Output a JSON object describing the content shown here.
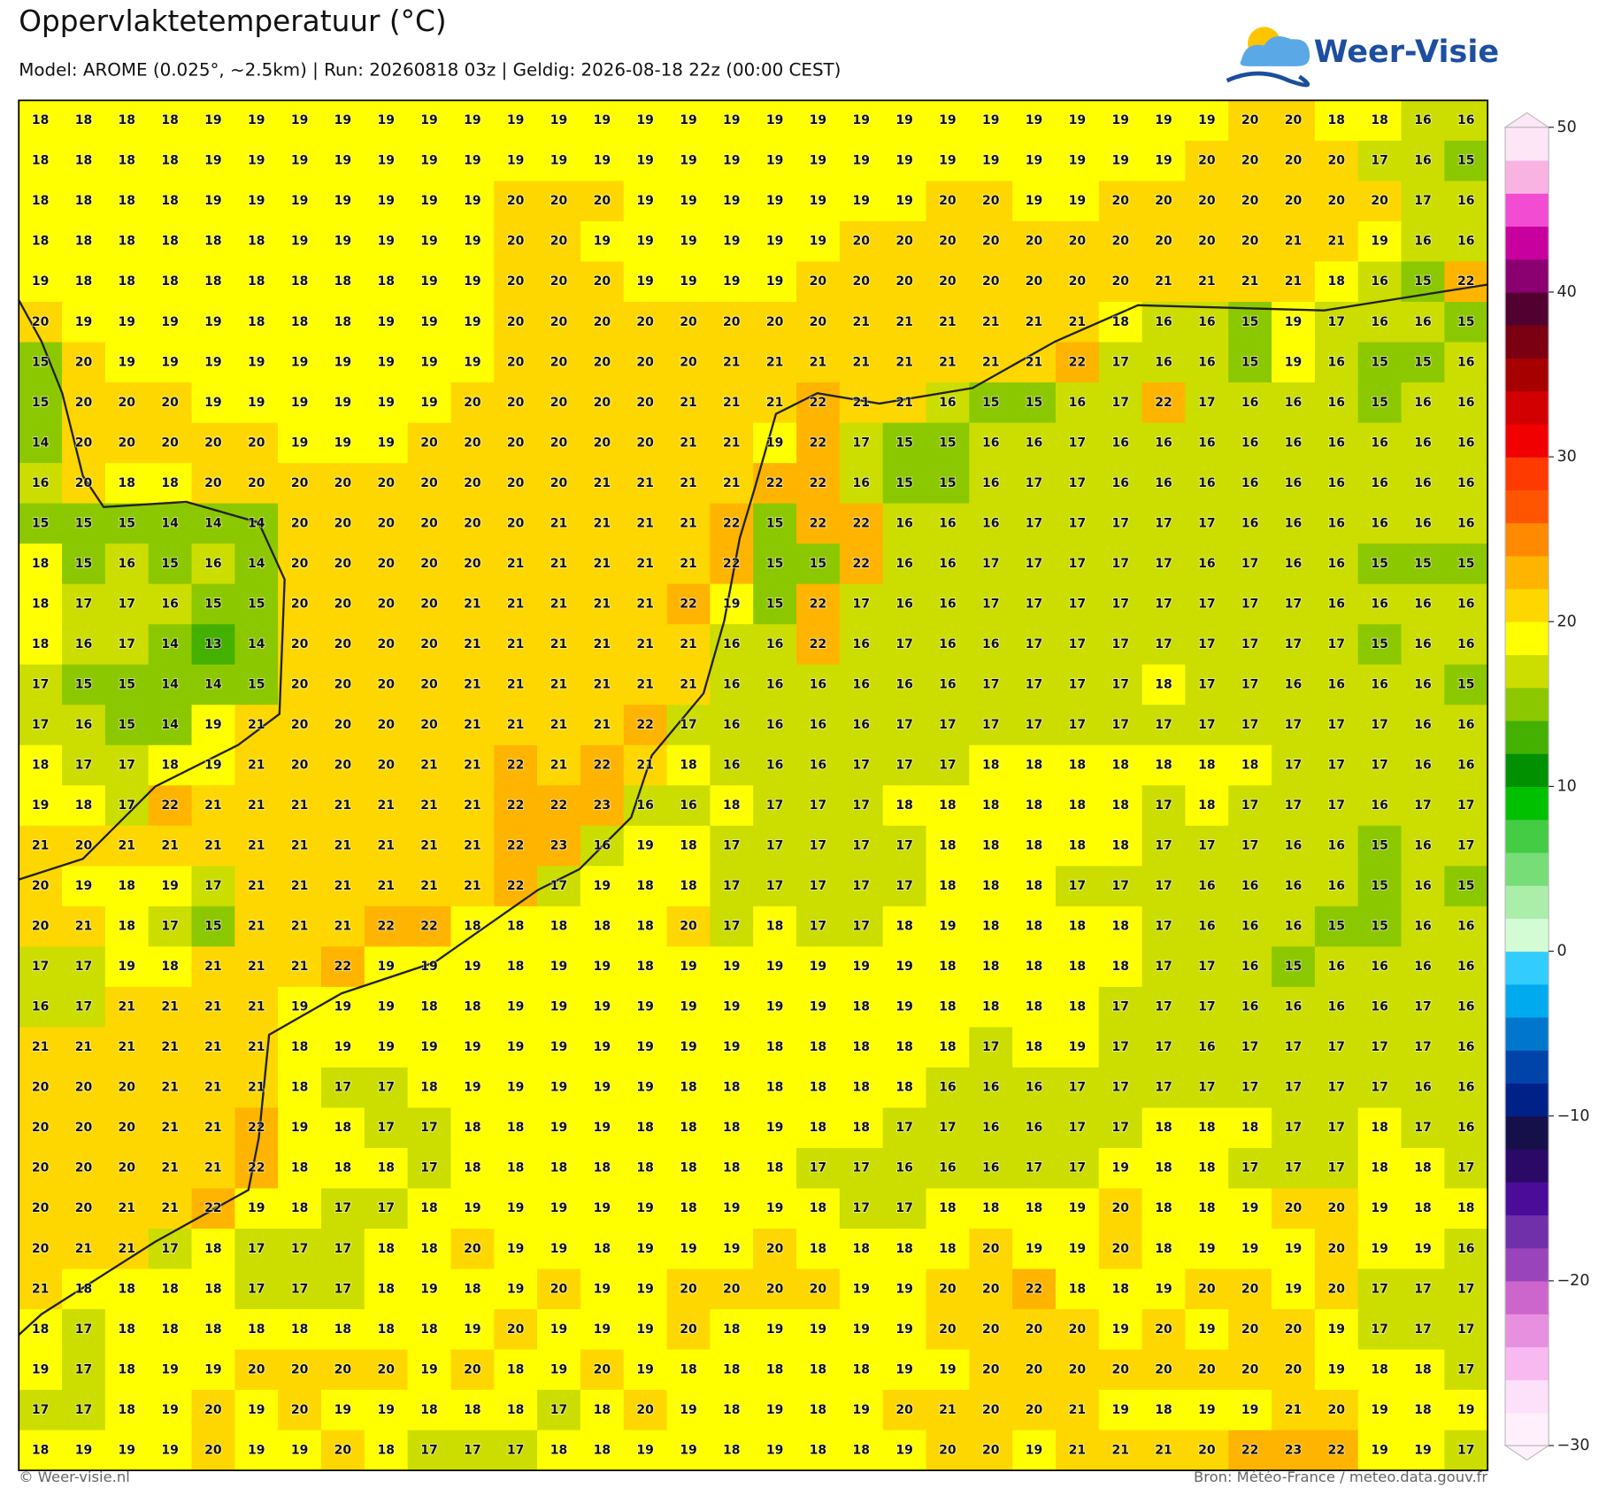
{
  "header": {
    "title": "Oppervlaktetemperatuur (°C)",
    "subtitle": "Model: AROME (0.025°, ~2.5km)  |  Run: 20260818 03z  |  Geldig: 2026-08-18 22z (00:00 CEST)",
    "logo": "Weer-Visie"
  },
  "colorbar": {
    "clim": [
      -30,
      50
    ],
    "colors": [
      "#fff0fc",
      "#fde0fa",
      "#f8b8f0",
      "#e890e0",
      "#cc66cc",
      "#9944bb",
      "#7030aa",
      "#4a0c99",
      "#2a0a66",
      "#15104a",
      "#002288",
      "#0044aa",
      "#0077cc",
      "#00aaee",
      "#33ccff",
      "#d4fcd4",
      "#aaeeaa",
      "#77dd77",
      "#44cc44",
      "#00c000",
      "#009000",
      "#44b000",
      "#8cc800",
      "#ccdd00",
      "#ffff00",
      "#ffd700",
      "#ffb400",
      "#ff8a00",
      "#ff5500",
      "#ff3a00",
      "#f00000",
      "#d20000",
      "#a60000",
      "#7b0012",
      "#520030",
      "#8b0070",
      "#c8009e",
      "#f24cd2",
      "#f9b3e3",
      "#fde6f5"
    ],
    "ticks": [
      50,
      40,
      30,
      20,
      10,
      0,
      {
        "value": -10,
        "label": "−10"
      },
      {
        "value": -20,
        "label": "−20"
      },
      {
        "value": -30,
        "label": "−30"
      }
    ]
  },
  "temperature_grid": {
    "rows": [
      [
        18,
        18,
        18,
        18,
        19,
        19,
        19,
        19,
        19,
        19,
        19,
        19,
        19,
        19,
        19,
        19,
        19,
        19,
        19,
        19,
        19,
        19,
        19,
        19,
        19,
        19,
        19,
        19,
        20,
        20,
        18,
        18,
        16,
        16
      ],
      [
        18,
        18,
        18,
        18,
        19,
        19,
        19,
        19,
        19,
        19,
        19,
        19,
        19,
        19,
        19,
        19,
        19,
        19,
        19,
        19,
        19,
        19,
        19,
        19,
        19,
        19,
        19,
        20,
        20,
        20,
        20,
        17,
        16,
        15
      ],
      [
        18,
        18,
        18,
        18,
        19,
        19,
        19,
        19,
        19,
        19,
        19,
        20,
        20,
        20,
        19,
        19,
        19,
        19,
        19,
        19,
        19,
        20,
        20,
        19,
        19,
        20,
        20,
        20,
        20,
        20,
        20,
        20,
        17,
        16
      ],
      [
        18,
        18,
        18,
        18,
        18,
        18,
        19,
        19,
        19,
        19,
        19,
        20,
        20,
        19,
        19,
        19,
        19,
        19,
        19,
        20,
        20,
        20,
        20,
        20,
        20,
        20,
        20,
        20,
        20,
        21,
        21,
        19,
        16,
        16
      ],
      [
        19,
        18,
        18,
        18,
        18,
        18,
        18,
        18,
        18,
        19,
        19,
        20,
        20,
        20,
        19,
        19,
        19,
        19,
        20,
        20,
        20,
        20,
        20,
        20,
        20,
        20,
        21,
        21,
        21,
        21,
        18,
        16,
        15,
        22
      ],
      [
        20,
        19,
        19,
        19,
        19,
        18,
        18,
        18,
        19,
        19,
        19,
        20,
        20,
        20,
        20,
        20,
        20,
        20,
        20,
        21,
        21,
        21,
        21,
        21,
        21,
        18,
        16,
        16,
        15,
        19,
        17,
        16,
        16,
        15
      ],
      [
        15,
        20,
        19,
        19,
        19,
        19,
        19,
        19,
        19,
        19,
        19,
        20,
        20,
        20,
        20,
        20,
        21,
        21,
        21,
        21,
        21,
        21,
        21,
        21,
        22,
        17,
        16,
        16,
        15,
        19,
        16,
        15,
        15,
        16
      ],
      [
        15,
        20,
        20,
        20,
        19,
        19,
        19,
        19,
        19,
        19,
        20,
        20,
        20,
        20,
        20,
        21,
        21,
        21,
        22,
        21,
        21,
        16,
        15,
        15,
        16,
        17,
        22,
        17,
        16,
        16,
        16,
        15,
        16,
        16
      ],
      [
        14,
        20,
        20,
        20,
        20,
        20,
        19,
        19,
        19,
        20,
        20,
        20,
        20,
        20,
        20,
        21,
        21,
        19,
        22,
        17,
        15,
        15,
        16,
        16,
        17,
        16,
        16,
        16,
        16,
        16,
        16,
        16,
        16,
        16
      ],
      [
        16,
        20,
        18,
        18,
        20,
        20,
        20,
        20,
        20,
        20,
        20,
        20,
        20,
        21,
        21,
        21,
        21,
        22,
        22,
        16,
        15,
        15,
        16,
        17,
        17,
        16,
        16,
        16,
        16,
        16,
        16,
        16,
        16,
        16
      ],
      [
        15,
        15,
        15,
        14,
        14,
        14,
        20,
        20,
        20,
        20,
        20,
        20,
        21,
        21,
        21,
        21,
        22,
        15,
        22,
        22,
        16,
        16,
        16,
        17,
        17,
        17,
        17,
        17,
        16,
        16,
        16,
        16,
        16,
        16
      ],
      [
        18,
        15,
        16,
        15,
        16,
        14,
        20,
        20,
        20,
        20,
        20,
        21,
        21,
        21,
        21,
        21,
        22,
        15,
        15,
        22,
        16,
        16,
        17,
        17,
        17,
        17,
        17,
        16,
        17,
        16,
        16,
        15,
        15,
        15
      ],
      [
        18,
        17,
        17,
        16,
        15,
        15,
        20,
        20,
        20,
        20,
        21,
        21,
        21,
        21,
        21,
        22,
        19,
        15,
        22,
        17,
        16,
        16,
        17,
        17,
        17,
        17,
        17,
        17,
        17,
        17,
        16,
        16,
        16,
        16
      ],
      [
        18,
        16,
        17,
        14,
        13,
        14,
        20,
        20,
        20,
        20,
        21,
        21,
        21,
        21,
        21,
        21,
        16,
        16,
        22,
        16,
        17,
        16,
        16,
        17,
        17,
        17,
        17,
        17,
        17,
        17,
        17,
        15,
        16,
        16
      ],
      [
        17,
        15,
        15,
        14,
        14,
        15,
        20,
        20,
        20,
        20,
        21,
        21,
        21,
        21,
        21,
        21,
        16,
        16,
        16,
        16,
        16,
        16,
        17,
        17,
        17,
        17,
        18,
        17,
        17,
        16,
        16,
        16,
        16,
        15
      ],
      [
        17,
        16,
        15,
        14,
        19,
        21,
        20,
        20,
        20,
        20,
        21,
        21,
        21,
        21,
        22,
        17,
        16,
        16,
        16,
        16,
        17,
        17,
        17,
        17,
        17,
        17,
        17,
        17,
        17,
        17,
        17,
        17,
        16,
        16
      ],
      [
        18,
        17,
        17,
        18,
        19,
        21,
        20,
        20,
        20,
        21,
        21,
        22,
        21,
        22,
        21,
        18,
        16,
        16,
        16,
        17,
        17,
        17,
        18,
        18,
        18,
        18,
        18,
        18,
        18,
        17,
        17,
        17,
        16,
        16
      ],
      [
        19,
        18,
        17,
        22,
        21,
        21,
        21,
        21,
        21,
        21,
        21,
        22,
        22,
        23,
        16,
        16,
        18,
        17,
        17,
        17,
        18,
        18,
        18,
        18,
        18,
        18,
        17,
        18,
        17,
        17,
        17,
        16,
        17,
        17
      ],
      [
        21,
        20,
        21,
        21,
        21,
        21,
        21,
        21,
        21,
        21,
        21,
        22,
        23,
        16,
        19,
        18,
        17,
        17,
        17,
        17,
        17,
        18,
        18,
        18,
        18,
        18,
        17,
        17,
        17,
        16,
        16,
        15,
        16,
        17
      ],
      [
        20,
        19,
        18,
        19,
        17,
        21,
        21,
        21,
        21,
        21,
        21,
        22,
        17,
        19,
        18,
        18,
        17,
        17,
        17,
        17,
        17,
        18,
        18,
        18,
        17,
        17,
        17,
        16,
        16,
        16,
        16,
        15,
        16,
        15
      ],
      [
        20,
        21,
        18,
        17,
        15,
        21,
        21,
        21,
        22,
        22,
        18,
        18,
        18,
        18,
        18,
        20,
        17,
        18,
        17,
        17,
        18,
        19,
        18,
        18,
        18,
        18,
        17,
        16,
        16,
        16,
        15,
        15,
        16,
        16
      ],
      [
        17,
        17,
        19,
        18,
        21,
        21,
        21,
        22,
        19,
        19,
        19,
        18,
        19,
        19,
        18,
        19,
        19,
        19,
        19,
        19,
        19,
        18,
        18,
        18,
        18,
        18,
        17,
        17,
        16,
        15,
        16,
        16,
        16,
        16
      ],
      [
        16,
        17,
        21,
        21,
        21,
        21,
        19,
        19,
        19,
        18,
        18,
        19,
        19,
        19,
        19,
        19,
        19,
        19,
        19,
        18,
        19,
        18,
        18,
        18,
        18,
        17,
        17,
        17,
        16,
        16,
        16,
        16,
        17,
        16
      ],
      [
        21,
        21,
        21,
        21,
        21,
        21,
        18,
        19,
        19,
        19,
        19,
        19,
        19,
        19,
        19,
        19,
        19,
        18,
        18,
        18,
        18,
        18,
        17,
        18,
        19,
        17,
        17,
        16,
        17,
        17,
        17,
        17,
        17,
        16
      ],
      [
        20,
        20,
        20,
        21,
        21,
        21,
        18,
        17,
        17,
        18,
        19,
        19,
        19,
        19,
        19,
        18,
        18,
        18,
        18,
        18,
        18,
        16,
        16,
        16,
        17,
        17,
        17,
        17,
        17,
        17,
        17,
        17,
        16,
        16
      ],
      [
        20,
        20,
        20,
        21,
        21,
        22,
        19,
        18,
        17,
        17,
        18,
        18,
        19,
        19,
        18,
        18,
        18,
        19,
        18,
        18,
        17,
        17,
        16,
        16,
        17,
        17,
        18,
        18,
        18,
        17,
        17,
        18,
        17,
        16
      ],
      [
        20,
        20,
        20,
        21,
        21,
        22,
        18,
        18,
        18,
        17,
        18,
        18,
        18,
        18,
        18,
        18,
        18,
        18,
        17,
        17,
        16,
        16,
        16,
        17,
        17,
        19,
        18,
        18,
        17,
        17,
        17,
        18,
        18,
        17
      ],
      [
        20,
        20,
        21,
        21,
        22,
        19,
        18,
        17,
        17,
        18,
        19,
        19,
        19,
        19,
        19,
        18,
        19,
        19,
        18,
        17,
        17,
        18,
        18,
        18,
        19,
        20,
        18,
        18,
        19,
        20,
        20,
        19,
        18,
        18
      ],
      [
        20,
        21,
        21,
        17,
        18,
        17,
        17,
        17,
        18,
        18,
        20,
        19,
        19,
        18,
        19,
        19,
        19,
        20,
        18,
        18,
        18,
        18,
        20,
        19,
        19,
        20,
        18,
        19,
        19,
        19,
        20,
        19,
        19,
        16
      ],
      [
        21,
        18,
        18,
        18,
        18,
        17,
        17,
        17,
        18,
        19,
        18,
        19,
        20,
        19,
        19,
        20,
        20,
        20,
        20,
        19,
        19,
        20,
        20,
        22,
        18,
        18,
        19,
        20,
        20,
        19,
        20,
        17,
        17,
        17
      ],
      [
        18,
        17,
        18,
        18,
        18,
        18,
        18,
        18,
        18,
        18,
        19,
        20,
        19,
        19,
        19,
        20,
        18,
        19,
        19,
        19,
        19,
        20,
        20,
        20,
        20,
        19,
        20,
        19,
        20,
        20,
        19,
        17,
        17,
        17
      ],
      [
        19,
        17,
        18,
        19,
        19,
        20,
        20,
        20,
        20,
        19,
        20,
        18,
        19,
        20,
        19,
        18,
        18,
        18,
        18,
        18,
        19,
        19,
        20,
        20,
        20,
        20,
        20,
        20,
        20,
        20,
        19,
        18,
        18,
        17
      ],
      [
        17,
        17,
        18,
        19,
        20,
        19,
        20,
        19,
        19,
        18,
        18,
        18,
        17,
        18,
        20,
        19,
        18,
        19,
        18,
        19,
        20,
        21,
        20,
        20,
        21,
        19,
        18,
        19,
        19,
        21,
        20,
        19,
        18,
        19
      ],
      [
        18,
        19,
        19,
        19,
        20,
        19,
        19,
        20,
        18,
        17,
        17,
        17,
        18,
        18,
        19,
        19,
        18,
        19,
        18,
        18,
        19,
        20,
        20,
        19,
        21,
        21,
        21,
        20,
        22,
        23,
        22,
        19,
        19,
        17
      ]
    ]
  },
  "footer": {
    "left": "© Weer-visie.nl",
    "right": "Bron: Météo-France / meteo.data.gouv.fr"
  }
}
